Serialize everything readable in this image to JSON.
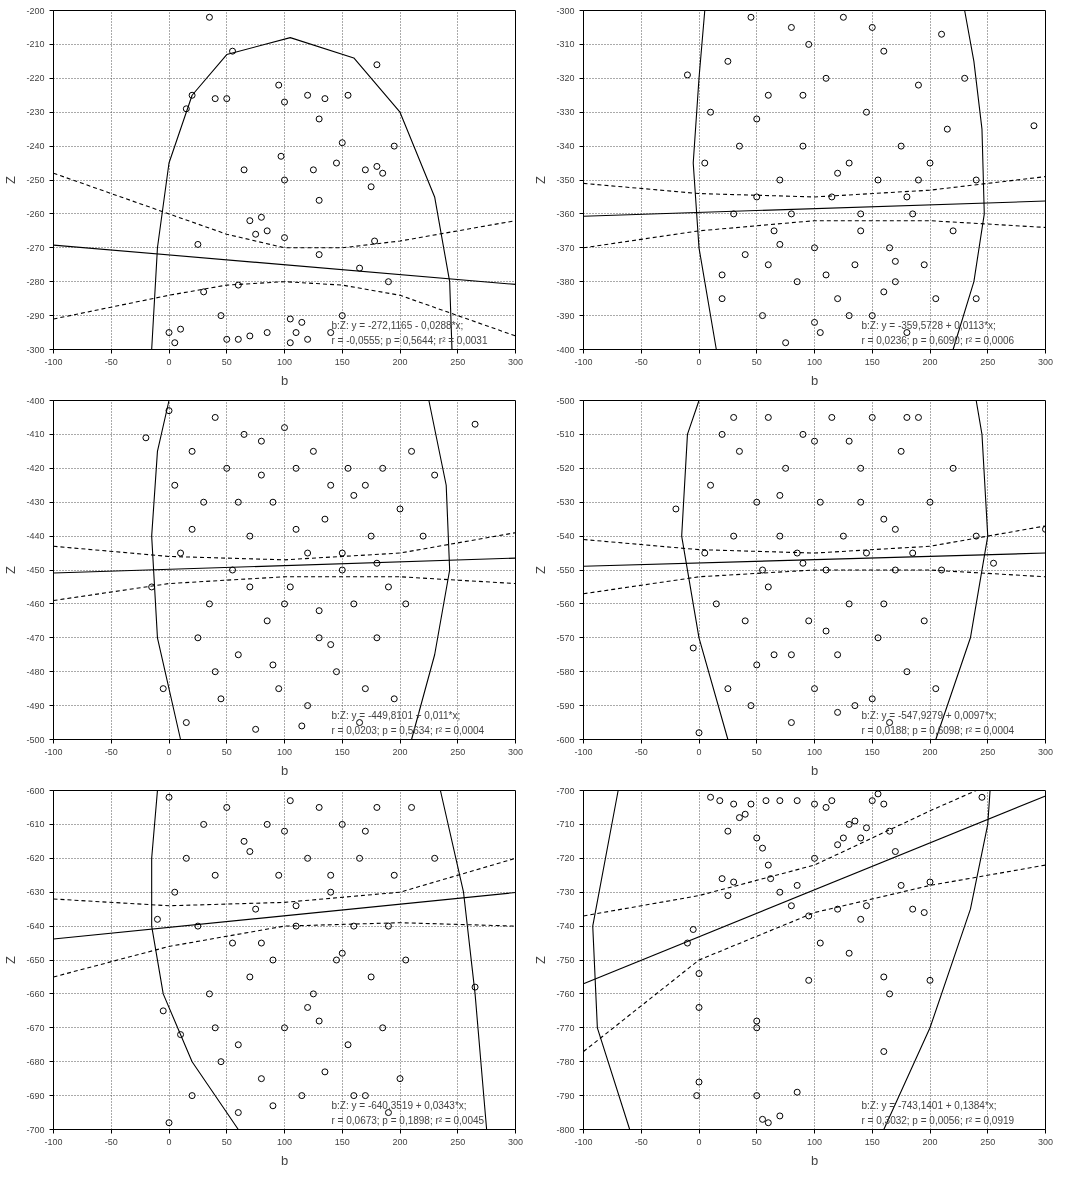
{
  "chart_data": [
    {
      "type": "scatter",
      "xlabel": "b",
      "ylabel": "Z",
      "xlim": [
        -100,
        300
      ],
      "xticks": [
        -100,
        -50,
        0,
        50,
        100,
        150,
        200,
        250,
        300
      ],
      "ylim": [
        -300,
        -200
      ],
      "yticks": [
        -300,
        -290,
        -280,
        -270,
        -260,
        -250,
        -240,
        -230,
        -220,
        -210,
        -200
      ],
      "grid": true,
      "annotations": [
        "b:Z:   y = -272,1165 - 0,0288*x;",
        "r = -0,0555; p = 0,5644; r² = 0,0031"
      ],
      "series": [
        {
          "type": "scatter",
          "marker": "circle",
          "color": "#000000",
          "x": [
            0,
            5,
            15,
            20,
            25,
            30,
            40,
            45,
            50,
            50,
            55,
            60,
            65,
            70,
            75,
            80,
            85,
            95,
            97,
            100,
            100,
            100,
            105,
            110,
            115,
            120,
            125,
            130,
            130,
            135,
            140,
            145,
            150,
            150,
            155,
            165,
            170,
            175,
            178,
            180,
            180,
            185,
            190,
            195,
            10,
            60,
            70,
            85,
            105,
            120,
            130,
            35
          ],
          "values": [
            -295,
            -298,
            -229,
            -225,
            -269,
            -283,
            -226,
            -290,
            -297,
            -226,
            -212,
            -281,
            -247,
            -262,
            -266,
            -261,
            -265,
            -222,
            -243,
            -227,
            -250,
            -267,
            -291,
            -295,
            -292,
            -225,
            -247,
            -256,
            -232,
            -226,
            -295,
            -245,
            -239,
            -290,
            -225,
            -276,
            -247,
            -252,
            -268,
            -216,
            -246,
            -248,
            -280,
            -240,
            -294,
            -297,
            -296,
            -295,
            -298,
            -297,
            -272,
            -202
          ]
        },
        {
          "type": "line",
          "line_style": "solid",
          "color": "#000000",
          "x": [
            -100,
            300
          ],
          "values": [
            -269.2,
            -280.8
          ]
        },
        {
          "type": "line",
          "line_style": "dashed",
          "color": "#000000",
          "x": [
            -100,
            0,
            50,
            100,
            150,
            200,
            300
          ],
          "values": [
            -248,
            -260,
            -266,
            -270,
            -270,
            -268,
            -262
          ]
        },
        {
          "type": "line",
          "line_style": "dashed",
          "color": "#000000",
          "x": [
            -100,
            0,
            50,
            100,
            150,
            200,
            300
          ],
          "values": [
            -291,
            -284,
            -281,
            -280,
            -281,
            -284,
            -296
          ]
        },
        {
          "type": "line",
          "line_style": "solid",
          "color": "#000000",
          "x": [
            -15,
            -10,
            0,
            20,
            50,
            105,
            160,
            200,
            230,
            243,
            245
          ],
          "values": [
            -300,
            -270,
            -245,
            -225,
            -213,
            -208,
            -214,
            -230,
            -255,
            -280,
            -300
          ]
        }
      ]
    },
    {
      "type": "scatter",
      "xlabel": "b",
      "ylabel": "Z",
      "xlim": [
        -100,
        300
      ],
      "xticks": [
        -100,
        -50,
        0,
        50,
        100,
        150,
        200,
        250,
        300
      ],
      "ylim": [
        -400,
        -300
      ],
      "yticks": [
        -400,
        -390,
        -380,
        -370,
        -360,
        -350,
        -340,
        -330,
        -320,
        -310,
        -300
      ],
      "grid": true,
      "annotations": [
        "b:Z:   y = -359,5728 + 0,0113*x;",
        "r = 0,0236; p = 0,6090; r² = 0,0006"
      ],
      "series": [
        {
          "type": "scatter",
          "marker": "circle",
          "color": "#000000",
          "x": [
            -10,
            5,
            10,
            20,
            25,
            30,
            35,
            40,
            45,
            50,
            55,
            60,
            65,
            70,
            75,
            80,
            85,
            90,
            95,
            100,
            105,
            110,
            115,
            120,
            125,
            130,
            135,
            140,
            145,
            150,
            155,
            160,
            165,
            170,
            175,
            180,
            185,
            190,
            195,
            200,
            205,
            210,
            215,
            220,
            230,
            240,
            290,
            60,
            80,
            100,
            120,
            140,
            160,
            180,
            50,
            70,
            90,
            110,
            130,
            150,
            170,
            190,
            20,
            240
          ],
          "values": [
            -319,
            -345,
            -330,
            -385,
            -315,
            -360,
            -340,
            -372,
            -302,
            -355,
            -390,
            -325,
            -365,
            -350,
            -398,
            -305,
            -380,
            -340,
            -310,
            -370,
            -395,
            -320,
            -355,
            -385,
            -302,
            -345,
            -375,
            -360,
            -330,
            -390,
            -350,
            -312,
            -370,
            -380,
            -340,
            -395,
            -360,
            -322,
            -375,
            -345,
            -385,
            -307,
            -335,
            -365,
            -320,
            -385,
            -334,
            -375,
            -360,
            -392,
            -348,
            -365,
            -383,
            -355,
            -332,
            -369,
            -325,
            -378,
            -390,
            -305,
            -374,
            -350,
            -378,
            -350
          ]
        },
        {
          "type": "line",
          "line_style": "solid",
          "color": "#000000",
          "x": [
            -100,
            300
          ],
          "values": [
            -360.7,
            -356.2
          ]
        },
        {
          "type": "line",
          "line_style": "dashed",
          "color": "#000000",
          "x": [
            -100,
            0,
            100,
            200,
            300
          ],
          "values": [
            -351,
            -354,
            -355,
            -353,
            -349
          ]
        },
        {
          "type": "line",
          "line_style": "dashed",
          "color": "#000000",
          "x": [
            -100,
            0,
            100,
            200,
            300
          ],
          "values": [
            -370,
            -365,
            -362,
            -362,
            -364
          ]
        },
        {
          "type": "line",
          "line_style": "solid",
          "color": "#000000",
          "x": [
            15,
            0,
            -5,
            0,
            5
          ],
          "values": [
            -400,
            -370,
            -345,
            -320,
            -300
          ]
        },
        {
          "type": "line",
          "line_style": "solid",
          "color": "#000000",
          "x": [
            220,
            238,
            247,
            245,
            238,
            230
          ],
          "values": [
            -400,
            -380,
            -360,
            -335,
            -315,
            -300
          ]
        }
      ]
    },
    {
      "type": "scatter",
      "xlabel": "b",
      "ylabel": "Z",
      "xlim": [
        -100,
        300
      ],
      "xticks": [
        -100,
        -50,
        0,
        50,
        100,
        150,
        200,
        250,
        300
      ],
      "ylim": [
        -500,
        -400
      ],
      "yticks": [
        -500,
        -490,
        -480,
        -470,
        -460,
        -450,
        -440,
        -430,
        -420,
        -410,
        -400
      ],
      "grid": true,
      "annotations": [
        "b:Z:   y = -449,8101 + 0,011*x;",
        "r = 0,0203; p = 0,5634; r² = 0,0004"
      ],
      "series": [
        {
          "type": "scatter",
          "marker": "circle",
          "color": "#000000",
          "x": [
            -20,
            -15,
            -5,
            0,
            5,
            10,
            15,
            20,
            25,
            30,
            35,
            40,
            45,
            50,
            55,
            60,
            65,
            70,
            75,
            80,
            85,
            90,
            95,
            100,
            105,
            110,
            115,
            120,
            125,
            130,
            135,
            140,
            145,
            150,
            155,
            160,
            165,
            170,
            175,
            180,
            185,
            190,
            195,
            200,
            205,
            210,
            220,
            230,
            265,
            70,
            90,
            110,
            130,
            150,
            170,
            60,
            80,
            100,
            120,
            140,
            160,
            180,
            40,
            20
          ],
          "values": [
            -411,
            -455,
            -485,
            -403,
            -425,
            -445,
            -495,
            -415,
            -470,
            -430,
            -460,
            -405,
            -488,
            -420,
            -450,
            -475,
            -410,
            -440,
            -497,
            -422,
            -465,
            -430,
            -485,
            -408,
            -455,
            -420,
            -496,
            -445,
            -415,
            -470,
            -435,
            -425,
            -480,
            -450,
            -420,
            -460,
            -495,
            -425,
            -440,
            -470,
            -420,
            -455,
            -488,
            -432,
            -460,
            -415,
            -440,
            -422,
            -407,
            -455,
            -478,
            -438,
            -462,
            -445,
            -485,
            -430,
            -412,
            -460,
            -490,
            -472,
            -428,
            -448,
            -480,
            -438
          ]
        },
        {
          "type": "line",
          "line_style": "solid",
          "color": "#000000",
          "x": [
            -100,
            300
          ],
          "values": [
            -450.9,
            -446.5
          ]
        },
        {
          "type": "line",
          "line_style": "dashed",
          "color": "#000000",
          "x": [
            -100,
            0,
            100,
            200,
            300
          ],
          "values": [
            -443,
            -446,
            -447,
            -445,
            -439
          ]
        },
        {
          "type": "line",
          "line_style": "dashed",
          "color": "#000000",
          "x": [
            -100,
            0,
            100,
            200,
            300
          ],
          "values": [
            -459,
            -454,
            -452,
            -452,
            -454
          ]
        },
        {
          "type": "line",
          "line_style": "solid",
          "color": "#000000",
          "x": [
            10,
            -10,
            -15,
            -10,
            0
          ],
          "values": [
            -500,
            -470,
            -440,
            -415,
            -400
          ]
        },
        {
          "type": "line",
          "line_style": "solid",
          "color": "#000000",
          "x": [
            210,
            230,
            243,
            240,
            225
          ],
          "values": [
            -500,
            -475,
            -450,
            -425,
            -400
          ]
        }
      ]
    },
    {
      "type": "scatter",
      "xlabel": "b",
      "ylabel": "Z",
      "xlim": [
        -100,
        300
      ],
      "xticks": [
        -100,
        -50,
        0,
        50,
        100,
        150,
        200,
        250,
        300
      ],
      "ylim": [
        -600,
        -500
      ],
      "yticks": [
        -600,
        -590,
        -580,
        -570,
        -560,
        -550,
        -540,
        -530,
        -520,
        -510,
        -500
      ],
      "grid": true,
      "annotations": [
        "b:Z:   y = -547,9279 + 0,0097*x;",
        "r = 0,0188; p = 0,6098; r² = 0,0004"
      ],
      "series": [
        {
          "type": "scatter",
          "marker": "circle",
          "color": "#000000",
          "x": [
            -20,
            -5,
            0,
            5,
            10,
            15,
            20,
            25,
            30,
            35,
            40,
            45,
            50,
            55,
            60,
            65,
            70,
            75,
            80,
            85,
            90,
            95,
            100,
            105,
            110,
            115,
            120,
            125,
            130,
            135,
            140,
            145,
            150,
            155,
            160,
            165,
            170,
            175,
            180,
            185,
            190,
            195,
            200,
            205,
            210,
            220,
            240,
            255,
            300,
            60,
            80,
            100,
            120,
            140,
            160,
            180,
            50,
            70,
            90,
            110,
            130,
            150,
            170,
            30
          ],
          "values": [
            -532,
            -573,
            -598,
            -545,
            -525,
            -560,
            -510,
            -585,
            -540,
            -515,
            -565,
            -590,
            -530,
            -550,
            -505,
            -575,
            -540,
            -520,
            -595,
            -545,
            -510,
            -565,
            -585,
            -530,
            -550,
            -505,
            -575,
            -540,
            -560,
            -590,
            -520,
            -545,
            -505,
            -570,
            -535,
            -595,
            -550,
            -515,
            -580,
            -545,
            -505,
            -565,
            -530,
            -585,
            -550,
            -520,
            -540,
            -548,
            -538,
            -555,
            -575,
            -512,
            -592,
            -530,
            -560,
            -505,
            -578,
            -528,
            -548,
            -568,
            -512,
            -588,
            -538,
            -505
          ]
        },
        {
          "type": "line",
          "line_style": "solid",
          "color": "#000000",
          "x": [
            -100,
            300
          ],
          "values": [
            -548.9,
            -545.0
          ]
        },
        {
          "type": "line",
          "line_style": "dashed",
          "color": "#000000",
          "x": [
            -100,
            0,
            100,
            200,
            300
          ],
          "values": [
            -541,
            -544,
            -545,
            -543,
            -537
          ]
        },
        {
          "type": "line",
          "line_style": "dashed",
          "color": "#000000",
          "x": [
            -100,
            0,
            100,
            200,
            300
          ],
          "values": [
            -557,
            -552,
            -550,
            -550,
            -552
          ]
        },
        {
          "type": "line",
          "line_style": "solid",
          "color": "#000000",
          "x": [
            25,
            0,
            -15,
            -10,
            0
          ],
          "values": [
            -600,
            -570,
            -540,
            -510,
            -500
          ]
        },
        {
          "type": "line",
          "line_style": "solid",
          "color": "#000000",
          "x": [
            205,
            235,
            250,
            245,
            240
          ],
          "values": [
            -600,
            -570,
            -540,
            -510,
            -500
          ]
        }
      ]
    },
    {
      "type": "scatter",
      "xlabel": "b",
      "ylabel": "Z",
      "xlim": [
        -100,
        300
      ],
      "xticks": [
        -100,
        -50,
        0,
        50,
        100,
        150,
        200,
        250,
        300
      ],
      "ylim": [
        -700,
        -600
      ],
      "yticks": [
        -700,
        -690,
        -680,
        -670,
        -660,
        -650,
        -640,
        -630,
        -620,
        -610,
        -600
      ],
      "grid": true,
      "annotations": [
        "b:Z:   y = -640,3519 + 0,0343*x;",
        "r = 0,0673; p = 0,1898; r² = 0,0045"
      ],
      "series": [
        {
          "type": "scatter",
          "marker": "circle",
          "color": "#000000",
          "x": [
            -10,
            -5,
            0,
            0,
            5,
            10,
            15,
            20,
            25,
            30,
            35,
            40,
            45,
            50,
            55,
            60,
            65,
            70,
            75,
            80,
            85,
            90,
            95,
            100,
            105,
            110,
            115,
            120,
            125,
            130,
            135,
            140,
            145,
            150,
            155,
            160,
            165,
            170,
            175,
            180,
            185,
            190,
            195,
            200,
            205,
            210,
            230,
            265,
            60,
            80,
            100,
            120,
            140,
            160,
            40,
            70,
            90,
            110,
            130,
            150,
            170,
            190
          ],
          "values": [
            -638,
            -665,
            -602,
            -698,
            -630,
            -672,
            -620,
            -690,
            -640,
            -610,
            -660,
            -625,
            -680,
            -605,
            -645,
            -695,
            -615,
            -655,
            -635,
            -685,
            -610,
            -650,
            -625,
            -670,
            -603,
            -640,
            -690,
            -620,
            -660,
            -605,
            -683,
            -630,
            -650,
            -610,
            -675,
            -640,
            -620,
            -690,
            -655,
            -605,
            -670,
            -640,
            -625,
            -685,
            -650,
            -605,
            -620,
            -658,
            -675,
            -645,
            -612,
            -664,
            -625,
            -690,
            -670,
            -618,
            -693,
            -634,
            -668,
            -648,
            -612,
            -695
          ]
        },
        {
          "type": "line",
          "line_style": "solid",
          "color": "#000000",
          "x": [
            -100,
            300
          ],
          "values": [
            -643.8,
            -630.1
          ]
        },
        {
          "type": "line",
          "line_style": "dashed",
          "color": "#000000",
          "x": [
            -100,
            0,
            100,
            200,
            300
          ],
          "values": [
            -632,
            -634,
            -633,
            -630,
            -620
          ]
        },
        {
          "type": "line",
          "line_style": "dashed",
          "color": "#000000",
          "x": [
            -100,
            0,
            100,
            200,
            300
          ],
          "values": [
            -655,
            -646,
            -640,
            -639,
            -640
          ]
        },
        {
          "type": "line",
          "line_style": "solid",
          "color": "#000000",
          "x": [
            60,
            20,
            -5,
            -15,
            -15,
            -10
          ],
          "values": [
            -700,
            -680,
            -660,
            -640,
            -620,
            -600
          ]
        },
        {
          "type": "line",
          "line_style": "solid",
          "color": "#000000",
          "x": [
            235,
            255,
            265,
            275
          ],
          "values": [
            -600,
            -630,
            -660,
            -700
          ]
        }
      ]
    },
    {
      "type": "scatter",
      "xlabel": "b",
      "ylabel": "Z",
      "xlim": [
        -100,
        300
      ],
      "xticks": [
        -100,
        -50,
        0,
        50,
        100,
        150,
        200,
        250,
        300
      ],
      "ylim": [
        -800,
        -700
      ],
      "yticks": [
        -800,
        -790,
        -780,
        -770,
        -760,
        -750,
        -740,
        -730,
        -720,
        -710,
        -700
      ],
      "grid": true,
      "annotations": [
        "b:Z:   y = -743,1401 + 0,1384*x;",
        "r = 0,3032; p = 0,0056; r² = 0,0919"
      ],
      "series": [
        {
          "type": "scatter",
          "marker": "circle",
          "color": "#000000",
          "x": [
            10,
            18,
            25,
            30,
            35,
            45,
            50,
            55,
            60,
            62,
            58,
            70,
            70,
            80,
            85,
            85,
            95,
            100,
            100,
            110,
            115,
            120,
            125,
            130,
            135,
            140,
            145,
            150,
            155,
            160,
            165,
            170,
            175,
            195,
            200,
            30,
            25,
            -5,
            -10,
            0,
            0,
            0,
            -2,
            50,
            50,
            50,
            55,
            60,
            70,
            85,
            95,
            105,
            120,
            140,
            145,
            160,
            165,
            160,
            200,
            185,
            130,
            20,
            40,
            245
          ],
          "values": [
            -702,
            -703,
            -712,
            -704,
            -708,
            -704,
            -714,
            -717,
            -722,
            -726,
            -703,
            -703,
            -730,
            -734,
            -703,
            -728,
            -737,
            -720,
            -704,
            -705,
            -703,
            -716,
            -714,
            -710,
            -709,
            -714,
            -711,
            -703,
            -701,
            -704,
            -712,
            -718,
            -728,
            -736,
            -727,
            -727,
            -731,
            -741,
            -745,
            -754,
            -764,
            -786,
            -790,
            -768,
            -770,
            -790,
            -797,
            -798,
            -796,
            -789,
            -756,
            -745,
            -735,
            -738,
            -734,
            -755,
            -760,
            -777,
            -756,
            -735,
            -748,
            -726,
            -707,
            -702
          ]
        },
        {
          "type": "line",
          "line_style": "solid",
          "color": "#000000",
          "x": [
            -100,
            300
          ],
          "values": [
            -757.0,
            -701.6
          ]
        },
        {
          "type": "line",
          "line_style": "dashed",
          "color": "#000000",
          "x": [
            -100,
            0,
            100,
            200,
            240
          ],
          "values": [
            -737,
            -731,
            -722,
            -706,
            -700
          ]
        },
        {
          "type": "line",
          "line_style": "dashed",
          "color": "#000000",
          "x": [
            -100,
            0,
            100,
            200,
            300
          ],
          "values": [
            -777,
            -750,
            -736,
            -728,
            -722
          ]
        },
        {
          "type": "line",
          "line_style": "solid",
          "color": "#000000",
          "x": [
            -70,
            -92,
            -88,
            -60
          ],
          "values": [
            -700,
            -740,
            -770,
            -800
          ]
        },
        {
          "type": "line",
          "line_style": "solid",
          "color": "#000000",
          "x": [
            160,
            200,
            235,
            250,
            252
          ],
          "values": [
            -800,
            -770,
            -735,
            -710,
            -700
          ]
        }
      ]
    }
  ]
}
